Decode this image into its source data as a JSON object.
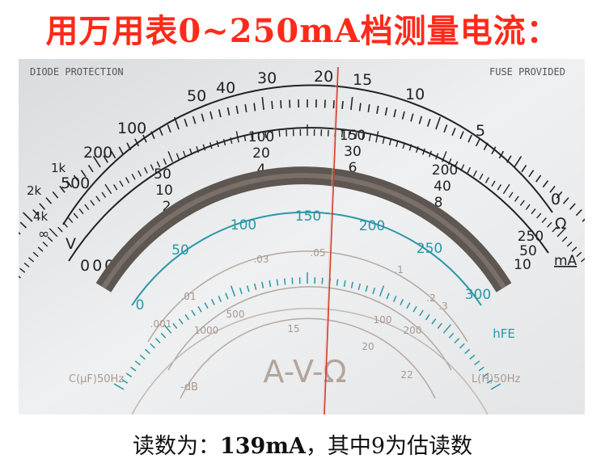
{
  "title": "用万用表0~250mA档测量电流：",
  "meter": {
    "top_left_label": "DIODE PROTECTION",
    "top_right_label": "FUSE PROVIDED",
    "ohm_scale": [
      "20",
      "15",
      "10",
      "5",
      "0",
      "30",
      "40",
      "50",
      "100",
      "200",
      "500",
      "1k",
      "2k",
      "4k",
      "∞"
    ],
    "ohm_symbol": "Ω",
    "dc_scale_250": [
      "50",
      "100",
      "150",
      "200",
      "250"
    ],
    "dc_scale_50": [
      "10",
      "20",
      "30",
      "40",
      "50"
    ],
    "dc_scale_10": [
      "2",
      "4",
      "6",
      "8",
      "10"
    ],
    "unit_ma": "mA",
    "vdc_label": "V",
    "zeros": "000",
    "hfe_scale": [
      "0",
      "50",
      "100",
      "150",
      "200",
      "250",
      "300"
    ],
    "hfe_label": "hFE",
    "cap_scale": [
      ".001",
      ".01",
      ".03",
      ".05",
      ".1",
      ".2",
      ".3"
    ],
    "lower_scale": [
      "1000",
      "500",
      "15",
      "100",
      "200",
      "20",
      "22"
    ],
    "db_label": "-dB",
    "cap_label": "C(μF)50Hz",
    "inductance_label": "L(H)50Hz",
    "avo_label": "A-V-Ω",
    "needle_reading_ma": 139
  },
  "caption": {
    "prefix": "读数为：",
    "value": "139mA",
    "suffix": "，其中9为估读数"
  }
}
